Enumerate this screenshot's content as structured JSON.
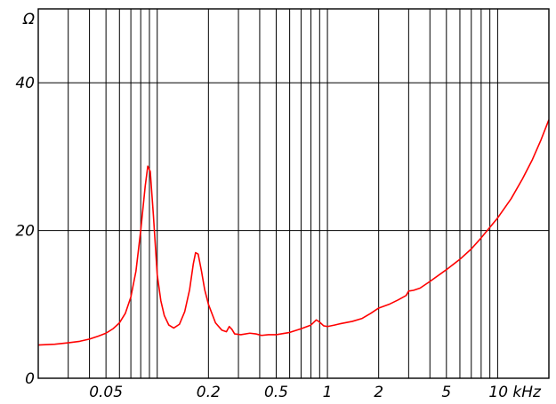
{
  "chart_data": {
    "type": "line",
    "title": "",
    "xscale": "log",
    "xlim": [
      0.02,
      20
    ],
    "ylim": [
      0,
      50
    ],
    "grid": true,
    "x_unit": "kHz",
    "y_unit": "Ω",
    "x_major_ticks": [
      {
        "value": 0.05,
        "label": "0.05"
      },
      {
        "value": 0.2,
        "label": "0.2"
      },
      {
        "value": 0.5,
        "label": "0.5"
      },
      {
        "value": 1,
        "label": "1"
      },
      {
        "value": 2,
        "label": "2"
      },
      {
        "value": 5,
        "label": "5"
      },
      {
        "value": 10,
        "label": "10 kHz"
      }
    ],
    "x_gridlines": [
      0.03,
      0.04,
      0.05,
      0.06,
      0.07,
      0.08,
      0.09,
      0.1,
      0.2,
      0.3,
      0.4,
      0.5,
      0.6,
      0.7,
      0.8,
      0.9,
      1,
      2,
      3,
      4,
      5,
      6,
      7,
      8,
      9,
      10
    ],
    "y_ticks": [
      {
        "value": 0,
        "label": "0"
      },
      {
        "value": 20,
        "label": "20"
      },
      {
        "value": 40,
        "label": "40"
      }
    ],
    "y_gridlines": [
      20,
      40
    ],
    "series": [
      {
        "color": "#ff0000",
        "points": [
          [
            0.02,
            4.5
          ],
          [
            0.025,
            4.6
          ],
          [
            0.03,
            4.8
          ],
          [
            0.035,
            5.0
          ],
          [
            0.04,
            5.3
          ],
          [
            0.045,
            5.7
          ],
          [
            0.05,
            6.1
          ],
          [
            0.055,
            6.7
          ],
          [
            0.06,
            7.5
          ],
          [
            0.065,
            8.8
          ],
          [
            0.07,
            11.0
          ],
          [
            0.075,
            14.5
          ],
          [
            0.08,
            20.0
          ],
          [
            0.085,
            26.0
          ],
          [
            0.088,
            28.7
          ],
          [
            0.091,
            28.0
          ],
          [
            0.095,
            22.0
          ],
          [
            0.1,
            14.0
          ],
          [
            0.105,
            10.5
          ],
          [
            0.11,
            8.5
          ],
          [
            0.117,
            7.2
          ],
          [
            0.125,
            6.8
          ],
          [
            0.135,
            7.3
          ],
          [
            0.145,
            9.0
          ],
          [
            0.155,
            12.0
          ],
          [
            0.163,
            15.5
          ],
          [
            0.168,
            17.0
          ],
          [
            0.174,
            16.8
          ],
          [
            0.182,
            14.5
          ],
          [
            0.19,
            12.0
          ],
          [
            0.2,
            10.0
          ],
          [
            0.22,
            7.5
          ],
          [
            0.24,
            6.5
          ],
          [
            0.255,
            6.3
          ],
          [
            0.265,
            7.0
          ],
          [
            0.275,
            6.6
          ],
          [
            0.285,
            6.0
          ],
          [
            0.31,
            5.9
          ],
          [
            0.35,
            6.1
          ],
          [
            0.38,
            6.0
          ],
          [
            0.41,
            5.8
          ],
          [
            0.45,
            5.9
          ],
          [
            0.5,
            5.9
          ],
          [
            0.6,
            6.2
          ],
          [
            0.7,
            6.7
          ],
          [
            0.8,
            7.2
          ],
          [
            0.86,
            7.9
          ],
          [
            0.9,
            7.6
          ],
          [
            0.95,
            7.1
          ],
          [
            1.0,
            7.0
          ],
          [
            1.1,
            7.2
          ],
          [
            1.2,
            7.4
          ],
          [
            1.4,
            7.7
          ],
          [
            1.6,
            8.1
          ],
          [
            1.8,
            8.8
          ],
          [
            2.0,
            9.5
          ],
          [
            2.3,
            10.0
          ],
          [
            2.6,
            10.6
          ],
          [
            2.9,
            11.2
          ],
          [
            3.0,
            11.8
          ],
          [
            3.2,
            11.9
          ],
          [
            3.5,
            12.2
          ],
          [
            4.0,
            13.1
          ],
          [
            5.0,
            14.7
          ],
          [
            6.0,
            16.1
          ],
          [
            7.0,
            17.5
          ],
          [
            8.0,
            19.0
          ],
          [
            10.0,
            21.7
          ],
          [
            12.0,
            24.3
          ],
          [
            14.0,
            27.0
          ],
          [
            16.0,
            29.6
          ],
          [
            18.0,
            32.3
          ],
          [
            20.0,
            35.0
          ]
        ]
      }
    ]
  }
}
